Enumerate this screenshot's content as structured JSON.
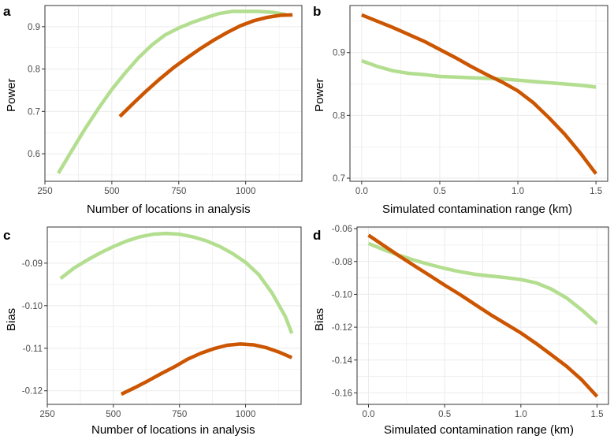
{
  "colors": {
    "light_green": "#b3de8f",
    "orange": "#cc5500",
    "grid": "#ebebeb",
    "frame": "#333333",
    "tick_text": "#4d4d4d"
  },
  "chart_data": [
    {
      "id": "a",
      "letter": "a",
      "type": "line",
      "xlabel": "Number of locations in analysis",
      "ylabel": "Power",
      "xlim": [
        250,
        1210
      ],
      "ylim": [
        0.535,
        0.95
      ],
      "xticks": [
        250,
        500,
        750,
        1000
      ],
      "yticks": [
        0.6,
        0.7,
        0.8,
        0.9
      ],
      "xtick_labels": [
        "250",
        "500",
        "750",
        "1000"
      ],
      "ytick_labels": [
        "0.6",
        "0.7",
        "0.8",
        "0.9"
      ],
      "series": [
        {
          "color": "#b3de8f",
          "x": [
            300,
            350,
            400,
            450,
            500,
            550,
            600,
            650,
            700,
            750,
            800,
            850,
            900,
            950,
            1000,
            1050,
            1100,
            1150
          ],
          "y": [
            0.554,
            0.607,
            0.659,
            0.707,
            0.752,
            0.791,
            0.827,
            0.857,
            0.881,
            0.897,
            0.91,
            0.921,
            0.931,
            0.936,
            0.936,
            0.936,
            0.934,
            0.929
          ]
        },
        {
          "color": "#cc5500",
          "x": [
            530,
            580,
            630,
            680,
            730,
            780,
            830,
            880,
            930,
            980,
            1030,
            1080,
            1130,
            1175
          ],
          "y": [
            0.688,
            0.719,
            0.749,
            0.777,
            0.803,
            0.826,
            0.848,
            0.868,
            0.886,
            0.902,
            0.914,
            0.922,
            0.927,
            0.928
          ]
        }
      ]
    },
    {
      "id": "b",
      "letter": "b",
      "type": "line",
      "xlabel": "Simulated contamination range (km)",
      "ylabel": "Power",
      "xlim": [
        -0.075,
        1.575
      ],
      "ylim": [
        0.695,
        0.975
      ],
      "xticks": [
        0.0,
        0.5,
        1.0,
        1.5
      ],
      "yticks": [
        0.7,
        0.8,
        0.9
      ],
      "xtick_labels": [
        "0.0",
        "0.5",
        "1.0",
        "1.5"
      ],
      "ytick_labels": [
        "0.7",
        "0.8",
        "0.9"
      ],
      "series": [
        {
          "color": "#b3de8f",
          "x": [
            0.0,
            0.1,
            0.2,
            0.3,
            0.4,
            0.5,
            0.6,
            0.7,
            0.8,
            0.9,
            1.0,
            1.1,
            1.2,
            1.3,
            1.4,
            1.5
          ],
          "y": [
            0.887,
            0.878,
            0.871,
            0.867,
            0.865,
            0.862,
            0.861,
            0.86,
            0.859,
            0.858,
            0.856,
            0.854,
            0.852,
            0.85,
            0.848,
            0.845
          ]
        },
        {
          "color": "#cc5500",
          "x": [
            0.0,
            0.1,
            0.2,
            0.3,
            0.4,
            0.5,
            0.6,
            0.7,
            0.8,
            0.9,
            1.0,
            1.1,
            1.2,
            1.3,
            1.4,
            1.5
          ],
          "y": [
            0.96,
            0.95,
            0.94,
            0.929,
            0.918,
            0.905,
            0.892,
            0.878,
            0.865,
            0.853,
            0.839,
            0.82,
            0.796,
            0.77,
            0.74,
            0.707
          ]
        }
      ]
    },
    {
      "id": "c",
      "letter": "c",
      "type": "line",
      "xlabel": "Number of locations in analysis",
      "ylabel": "Bias",
      "xlim": [
        250,
        1210
      ],
      "ylim": [
        -0.1232,
        -0.0815
      ],
      "xticks": [
        250,
        500,
        750,
        1000
      ],
      "yticks": [
        -0.12,
        -0.11,
        -0.1,
        -0.09
      ],
      "xtick_labels": [
        "250",
        "500",
        "750",
        "1000"
      ],
      "ytick_labels": [
        "-0.12",
        "-0.11",
        "-0.10",
        "-0.09"
      ],
      "series": [
        {
          "color": "#b3de8f",
          "x": [
            300,
            350,
            400,
            450,
            500,
            550,
            600,
            650,
            700,
            750,
            800,
            850,
            900,
            950,
            1000,
            1050,
            1100,
            1150,
            1175
          ],
          "y": [
            -0.0936,
            -0.0912,
            -0.0893,
            -0.0876,
            -0.0861,
            -0.0848,
            -0.0838,
            -0.0832,
            -0.083,
            -0.0832,
            -0.0838,
            -0.0847,
            -0.086,
            -0.0877,
            -0.0898,
            -0.0927,
            -0.097,
            -0.1025,
            -0.1065
          ]
        },
        {
          "color": "#cc5500",
          "x": [
            530,
            580,
            630,
            680,
            730,
            780,
            830,
            880,
            930,
            980,
            1030,
            1080,
            1130,
            1175
          ],
          "y": [
            -0.1208,
            -0.1193,
            -0.1177,
            -0.116,
            -0.1144,
            -0.1126,
            -0.1112,
            -0.1101,
            -0.1093,
            -0.109,
            -0.1092,
            -0.1099,
            -0.111,
            -0.1122
          ]
        }
      ]
    },
    {
      "id": "d",
      "letter": "d",
      "type": "line",
      "xlabel": "Simulated contamination range (km)",
      "ylabel": "Bias",
      "xlim": [
        -0.075,
        1.575
      ],
      "ylim": [
        -0.167,
        -0.059
      ],
      "xticks": [
        0.0,
        0.5,
        1.0,
        1.5
      ],
      "yticks": [
        -0.16,
        -0.14,
        -0.12,
        -0.1,
        -0.08,
        -0.06
      ],
      "xtick_labels": [
        "0.0",
        "0.5",
        "1.0",
        "1.5"
      ],
      "ytick_labels": [
        "-0.16",
        "-0.14",
        "-0.12",
        "-0.10",
        "-0.08",
        "-0.06"
      ],
      "series": [
        {
          "color": "#b3de8f",
          "x": [
            0.0,
            0.1,
            0.2,
            0.3,
            0.4,
            0.5,
            0.6,
            0.7,
            0.8,
            0.9,
            1.0,
            1.1,
            1.2,
            1.3,
            1.4,
            1.5
          ],
          "y": [
            -0.069,
            -0.0728,
            -0.0762,
            -0.0792,
            -0.0818,
            -0.0842,
            -0.0862,
            -0.0878,
            -0.0888,
            -0.0898,
            -0.091,
            -0.093,
            -0.0968,
            -0.1022,
            -0.1095,
            -0.1178
          ]
        },
        {
          "color": "#cc5500",
          "x": [
            0.0,
            0.1,
            0.2,
            0.3,
            0.4,
            0.5,
            0.6,
            0.7,
            0.8,
            0.9,
            1.0,
            1.1,
            1.2,
            1.3,
            1.4,
            1.5
          ],
          "y": [
            -0.064,
            -0.0703,
            -0.0765,
            -0.0825,
            -0.0884,
            -0.0944,
            -0.1001,
            -0.1062,
            -0.1123,
            -0.1179,
            -0.1235,
            -0.1299,
            -0.1368,
            -0.1438,
            -0.1521,
            -0.1622
          ]
        }
      ]
    }
  ]
}
